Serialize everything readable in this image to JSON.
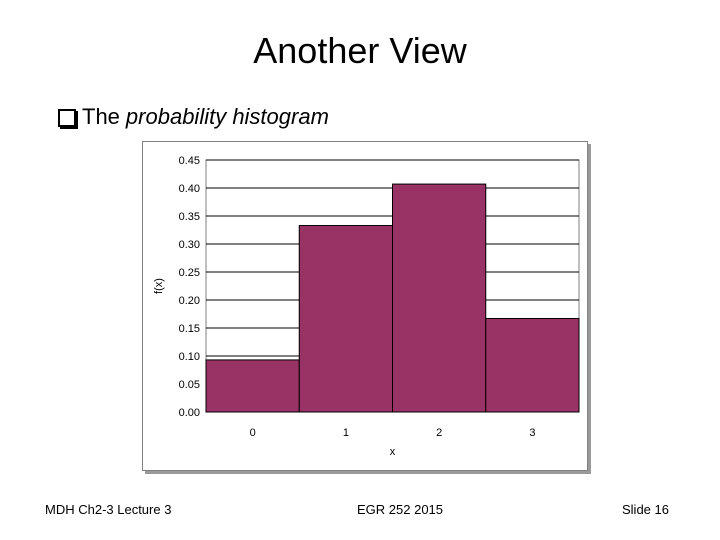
{
  "slide": {
    "title": "Another View",
    "bullet_prefix": "The",
    "bullet_italic": "probability histogram",
    "footer_left": "MDH Ch2-3 Lecture 3",
    "footer_center": "EGR 252   2015",
    "footer_right": "Slide  16"
  },
  "icons": {
    "bullet": "checkbox-bullet-icon"
  },
  "colors": {
    "bar_fill": "#993366",
    "bar_stroke": "#000000",
    "gridline": "#000000",
    "plot_border": "#808080"
  },
  "chart_data": {
    "type": "bar",
    "categories": [
      "0",
      "1",
      "2",
      "3"
    ],
    "values": [
      0.093,
      0.333,
      0.407,
      0.167
    ],
    "xlabel": "x",
    "ylabel": "f(x)",
    "ylim": [
      0,
      0.45
    ],
    "yticks": [
      "0.00",
      "0.05",
      "0.10",
      "0.15",
      "0.20",
      "0.25",
      "0.30",
      "0.35",
      "0.40",
      "0.45"
    ],
    "grid": true,
    "legend": "none"
  }
}
